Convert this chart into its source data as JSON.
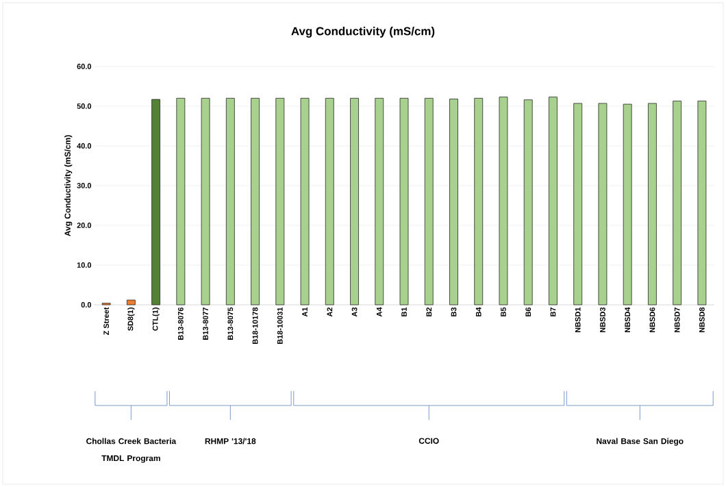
{
  "chart_data": {
    "type": "bar",
    "title": "Avg Conductivity (mS/cm)",
    "ylabel": "Avg Conductivity (mS/cm)",
    "categories": [
      "Z Street",
      "SD8(1)",
      "CTL(1)",
      "B13-8076",
      "B13-8077",
      "B13-8075",
      "B18-10178",
      "B18-10031",
      "A1",
      "A2",
      "A3",
      "A4",
      "B1",
      "B2",
      "B3",
      "B4",
      "B5",
      "B6",
      "B7",
      "NBSD1",
      "NBSD3",
      "NBSD4",
      "NBSD6",
      "NBSD7",
      "NBSD8"
    ],
    "values": [
      0.4,
      1.2,
      51.7,
      52.0,
      52.0,
      52.0,
      52.0,
      52.0,
      52.0,
      52.0,
      52.0,
      52.0,
      52.0,
      52.0,
      51.8,
      52.0,
      52.3,
      51.6,
      52.3,
      50.7,
      50.7,
      50.5,
      50.7,
      51.3,
      51.3
    ],
    "colors": [
      "#ed7d31",
      "#ed7d31",
      "#548235",
      "#a9d18e",
      "#a9d18e",
      "#a9d18e",
      "#a9d18e",
      "#a9d18e",
      "#a9d18e",
      "#a9d18e",
      "#a9d18e",
      "#a9d18e",
      "#a9d18e",
      "#a9d18e",
      "#a9d18e",
      "#a9d18e",
      "#a9d18e",
      "#a9d18e",
      "#a9d18e",
      "#a9d18e",
      "#a9d18e",
      "#a9d18e",
      "#a9d18e",
      "#a9d18e",
      "#a9d18e"
    ],
    "ylim": [
      0,
      60
    ],
    "yticks": [
      {
        "value": 0,
        "label": "0.0"
      },
      {
        "value": 10,
        "label": "10.0"
      },
      {
        "value": 20,
        "label": "20.0"
      },
      {
        "value": 30,
        "label": "30.0"
      },
      {
        "value": 40,
        "label": "40.0"
      },
      {
        "value": 50,
        "label": "50.0"
      },
      {
        "value": 60,
        "label": "60.0"
      }
    ],
    "grid": "y",
    "annotations": [
      "Chollas Creek Bacteria TMDL Program",
      "RHMP '13/'18",
      "CCIO",
      "Naval Base San Diego"
    ]
  }
}
